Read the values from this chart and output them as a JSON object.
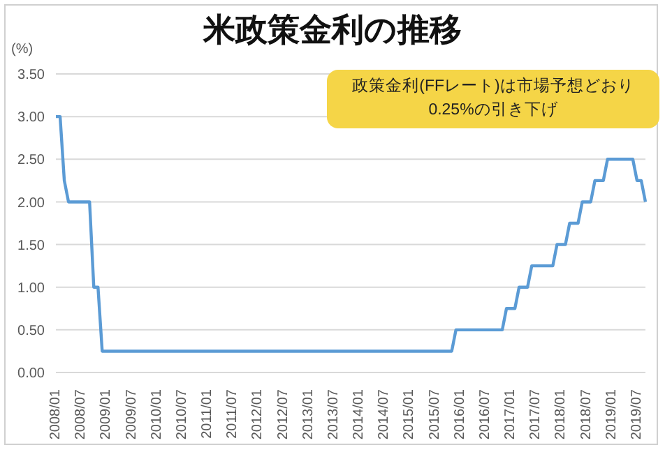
{
  "chart_data": {
    "type": "line",
    "title": "米政策金利の推移",
    "ylabel": "(%)",
    "annotations": [
      "政策金利(FFレート)は市場予想どおり\n0.25%の引き下げ"
    ],
    "categories": [
      "2008/01",
      null,
      null,
      null,
      null,
      null,
      "2008/07",
      null,
      null,
      null,
      null,
      null,
      "2009/01",
      null,
      null,
      null,
      null,
      null,
      "2009/07",
      null,
      null,
      null,
      null,
      null,
      "2010/01",
      null,
      null,
      null,
      null,
      null,
      "2010/07",
      null,
      null,
      null,
      null,
      null,
      "2011/01",
      null,
      null,
      null,
      null,
      null,
      "2011/07",
      null,
      null,
      null,
      null,
      null,
      "2012/01",
      null,
      null,
      null,
      null,
      null,
      "2012/07",
      null,
      null,
      null,
      null,
      null,
      "2013/01",
      null,
      null,
      null,
      null,
      null,
      "2013/07",
      null,
      null,
      null,
      null,
      null,
      "2014/01",
      null,
      null,
      null,
      null,
      null,
      "2014/07",
      null,
      null,
      null,
      null,
      null,
      "2015/01",
      null,
      null,
      null,
      null,
      null,
      "2015/07",
      null,
      null,
      null,
      null,
      null,
      "2016/01",
      null,
      null,
      null,
      null,
      null,
      "2016/07",
      null,
      null,
      null,
      null,
      null,
      "2017/01",
      null,
      null,
      null,
      null,
      null,
      "2017/07",
      null,
      null,
      null,
      null,
      null,
      "2018/01",
      null,
      null,
      null,
      null,
      null,
      "2018/07",
      null,
      null,
      null,
      null,
      null,
      "2019/01",
      null,
      null,
      null,
      null,
      null,
      "2019/07",
      null,
      null
    ],
    "series": [
      {
        "color": "#5b9bd5",
        "values": [
          3,
          3,
          2.25,
          2,
          2,
          2,
          2,
          2,
          2,
          1,
          1,
          0.25,
          0.25,
          0.25,
          0.25,
          0.25,
          0.25,
          0.25,
          0.25,
          0.25,
          0.25,
          0.25,
          0.25,
          0.25,
          0.25,
          0.25,
          0.25,
          0.25,
          0.25,
          0.25,
          0.25,
          0.25,
          0.25,
          0.25,
          0.25,
          0.25,
          0.25,
          0.25,
          0.25,
          0.25,
          0.25,
          0.25,
          0.25,
          0.25,
          0.25,
          0.25,
          0.25,
          0.25,
          0.25,
          0.25,
          0.25,
          0.25,
          0.25,
          0.25,
          0.25,
          0.25,
          0.25,
          0.25,
          0.25,
          0.25,
          0.25,
          0.25,
          0.25,
          0.25,
          0.25,
          0.25,
          0.25,
          0.25,
          0.25,
          0.25,
          0.25,
          0.25,
          0.25,
          0.25,
          0.25,
          0.25,
          0.25,
          0.25,
          0.25,
          0.25,
          0.25,
          0.25,
          0.25,
          0.25,
          0.25,
          0.25,
          0.25,
          0.25,
          0.25,
          0.25,
          0.25,
          0.25,
          0.25,
          0.25,
          0.25,
          0.5,
          0.5,
          0.5,
          0.5,
          0.5,
          0.5,
          0.5,
          0.5,
          0.5,
          0.5,
          0.5,
          0.5,
          0.75,
          0.75,
          0.75,
          1,
          1,
          1,
          1.25,
          1.25,
          1.25,
          1.25,
          1.25,
          1.25,
          1.5,
          1.5,
          1.5,
          1.75,
          1.75,
          1.75,
          2,
          2,
          2,
          2.25,
          2.25,
          2.25,
          2.5,
          2.5,
          2.5,
          2.5,
          2.5,
          2.5,
          2.5,
          2.25,
          2.25,
          2
        ]
      }
    ],
    "ylim": [
      0,
      3.5
    ],
    "yticks": [
      {
        "value": 0,
        "label": "0.00"
      },
      {
        "value": 0.5,
        "label": "0.50"
      },
      {
        "value": 1,
        "label": "1.00"
      },
      {
        "value": 1.5,
        "label": "1.50"
      },
      {
        "value": 2,
        "label": "2.00"
      },
      {
        "value": 2.5,
        "label": "2.50"
      },
      {
        "value": 3,
        "label": "3.00"
      },
      {
        "value": 3.5,
        "label": "3.50"
      }
    ],
    "grid": "y"
  }
}
